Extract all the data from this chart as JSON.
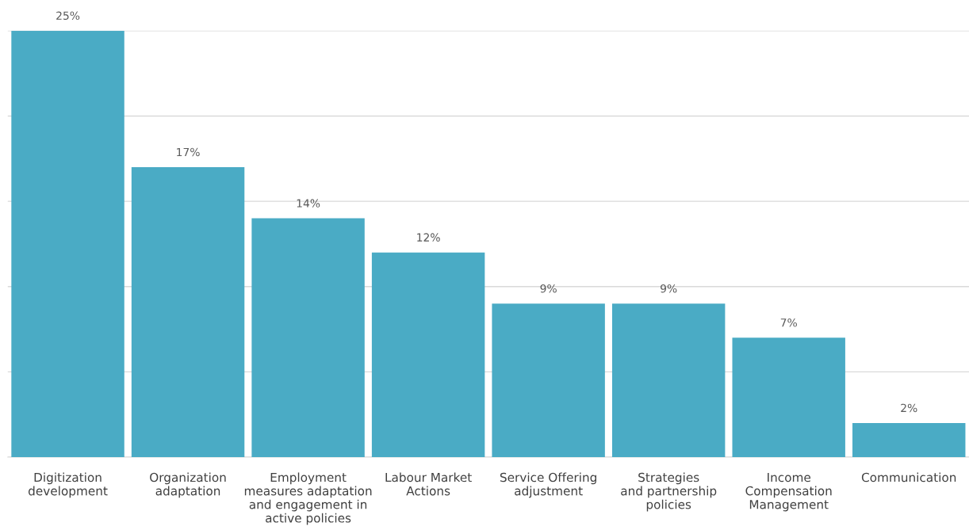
{
  "chart_data": {
    "type": "bar",
    "categories": [
      "Digitization\ndevelopment",
      "Organization\nadaptation",
      "Employment\nmeasures adaptation\nand engagement in\nactive policies",
      "Labour Market\nActions",
      "Service Offering\nadjustment",
      "Strategies\nand partnership\npolicies",
      "Income\nCompensation\nManagement",
      "Communication"
    ],
    "values": [
      25,
      17,
      14,
      12,
      9,
      9,
      7,
      2
    ],
    "value_labels": [
      "25%",
      "17%",
      "14%",
      "12%",
      "9%",
      "9%",
      "7%",
      "2%"
    ],
    "color": "#4aabc5",
    "ylim": [
      0,
      25
    ],
    "yticks": [
      {
        "value": 0,
        "label": null
      },
      {
        "value": 5,
        "label": null
      },
      {
        "value": 10,
        "label": null
      },
      {
        "value": 15,
        "label": null
      },
      {
        "value": 20,
        "label": null
      },
      {
        "value": 25,
        "label": null
      }
    ],
    "tick_labels": "x",
    "grid": "y"
  }
}
